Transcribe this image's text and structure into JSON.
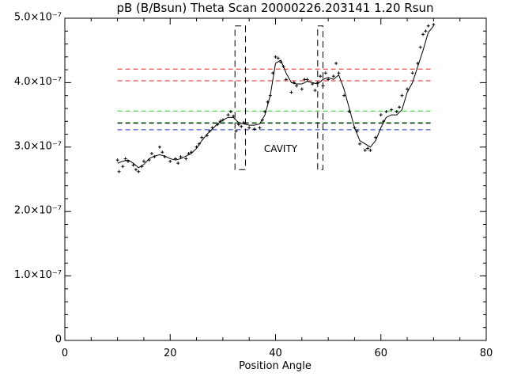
{
  "chart_data": {
    "type": "line",
    "title": "pB (B/Bsun) Theta Scan 20000226.203141 1.20 Rsun",
    "x_label": "Position Angle",
    "xlim": [
      0,
      80
    ],
    "xticks": [
      0,
      20,
      40,
      60,
      80
    ],
    "ylim": [
      0,
      5e-07
    ],
    "yticks": [
      {
        "value": 0,
        "label": "0"
      },
      {
        "value": 1e-07,
        "label": "1.0×10⁻⁷"
      },
      {
        "value": 2e-07,
        "label": "2.0×10⁻⁷"
      },
      {
        "value": 3e-07,
        "label": "3.0×10⁻⁷"
      },
      {
        "value": 4e-07,
        "label": "4.0×10⁻⁷"
      },
      {
        "value": 5e-07,
        "label": "5.0×10⁻⁷"
      }
    ],
    "series": [
      {
        "color": "#000000",
        "x": [
          10,
          11,
          12,
          13,
          14,
          15,
          16,
          17,
          18,
          19,
          20,
          21,
          22,
          23,
          24,
          25,
          26,
          27,
          28,
          29,
          30,
          31,
          32,
          33,
          34,
          35,
          36,
          37,
          38,
          39,
          40,
          41,
          42,
          43,
          44,
          45,
          46,
          47,
          48,
          49,
          50,
          51,
          52,
          53,
          54,
          55,
          56,
          57,
          58,
          59,
          60,
          61,
          62,
          63,
          64,
          65,
          66,
          67,
          68,
          69,
          70
        ],
        "values": [
          2.75e-07,
          2.78e-07,
          2.8e-07,
          2.75e-07,
          2.68e-07,
          2.73e-07,
          2.82e-07,
          2.86e-07,
          2.88e-07,
          2.86e-07,
          2.82e-07,
          2.8e-07,
          2.82e-07,
          2.86e-07,
          2.9e-07,
          2.98e-07,
          3.1e-07,
          3.2e-07,
          3.28e-07,
          3.36e-07,
          3.42e-07,
          3.46e-07,
          3.46e-07,
          3.38e-07,
          3.36e-07,
          3.34e-07,
          3.34e-07,
          3.36e-07,
          3.5e-07,
          3.8e-07,
          4.3e-07,
          4.35e-07,
          4.15e-07,
          4e-07,
          3.98e-07,
          3.98e-07,
          4.02e-07,
          4e-07,
          3.98e-07,
          4.05e-07,
          4.08e-07,
          4.05e-07,
          4.12e-07,
          3.9e-07,
          3.6e-07,
          3.3e-07,
          3.1e-07,
          3.05e-07,
          3e-07,
          3.1e-07,
          3.3e-07,
          3.46e-07,
          3.5e-07,
          3.5e-07,
          3.58e-07,
          3.85e-07,
          4e-07,
          4.25e-07,
          4.5e-07,
          4.78e-07,
          4.88e-07
        ]
      }
    ],
    "points": {
      "color": "#000000",
      "x": [
        10,
        10.3,
        11,
        11.5,
        12,
        13,
        13.5,
        14,
        14.6,
        15,
        16,
        16.5,
        17,
        18,
        18.5,
        19,
        20,
        21,
        21.5,
        22,
        23,
        23.5,
        24,
        25,
        25.5,
        26,
        27,
        27.5,
        28,
        29,
        29.5,
        30,
        31,
        31.5,
        32,
        32.5,
        33,
        33.5,
        34,
        35,
        36,
        37,
        37.5,
        38,
        38.5,
        39,
        39.5,
        40,
        40.5,
        41,
        41.5,
        42,
        43,
        43.5,
        44,
        45,
        45.5,
        46,
        47,
        47.5,
        48,
        48.5,
        49,
        49.5,
        50,
        51,
        51.5,
        52,
        53,
        54,
        55,
        55.5,
        56,
        57,
        57.5,
        58,
        59,
        60,
        60.5,
        61,
        62,
        63,
        63.5,
        64,
        65,
        66,
        67,
        67.5,
        68,
        68.5,
        69,
        70
      ],
      "values": [
        2.8e-07,
        2.62e-07,
        2.7e-07,
        2.82e-07,
        2.78e-07,
        2.72e-07,
        2.65e-07,
        2.62e-07,
        2.7e-07,
        2.78e-07,
        2.8e-07,
        2.9e-07,
        2.85e-07,
        3e-07,
        2.92e-07,
        2.85e-07,
        2.78e-07,
        2.82e-07,
        2.75e-07,
        2.85e-07,
        2.82e-07,
        2.9e-07,
        2.92e-07,
        3e-07,
        3.05e-07,
        3.15e-07,
        3.18e-07,
        3.25e-07,
        3.3e-07,
        3.35e-07,
        3.4e-07,
        3.42e-07,
        3.5e-07,
        3.55e-07,
        3.48e-07,
        3.25e-07,
        3.35e-07,
        3.32e-07,
        3.38e-07,
        3.3e-07,
        3.28e-07,
        3.3e-07,
        3.42e-07,
        3.55e-07,
        3.7e-07,
        3.8e-07,
        4.15e-07,
        4.4e-07,
        4.38e-07,
        4.32e-07,
        4.25e-07,
        4.05e-07,
        3.85e-07,
        4e-07,
        3.95e-07,
        3.9e-07,
        4.05e-07,
        4.05e-07,
        3.98e-07,
        3.88e-07,
        4e-07,
        4.1e-07,
        3.95e-07,
        4.15e-07,
        4.05e-07,
        4.1e-07,
        4.3e-07,
        4.15e-07,
        3.8e-07,
        3.55e-07,
        3.3e-07,
        3.25e-07,
        3.05e-07,
        2.95e-07,
        2.98e-07,
        2.95e-07,
        3.15e-07,
        3.5e-07,
        3.4e-07,
        3.55e-07,
        3.58e-07,
        3.55e-07,
        3.62e-07,
        3.8e-07,
        3.9e-07,
        4.15e-07,
        4.3e-07,
        4.55e-07,
        4.75e-07,
        4.8e-07,
        4.88e-07,
        4.9e-07
      ]
    },
    "hlines": [
      {
        "value": 4.21e-07,
        "color": "#dd2222",
        "x": [
          10,
          70
        ]
      },
      {
        "value": 4.03e-07,
        "color": "#dd2222",
        "x": [
          10,
          70
        ]
      },
      {
        "value": 3.56e-07,
        "color": "#22cc22",
        "x": [
          10,
          70
        ]
      },
      {
        "value": 3.38e-07,
        "color": "#22aa22",
        "x": [
          10,
          70
        ]
      },
      {
        "value": 3.37e-07,
        "color": "#000000",
        "x": [
          10,
          70
        ]
      },
      {
        "value": 3.27e-07,
        "color": "#2233cc",
        "x": [
          10,
          70
        ]
      }
    ],
    "boxes": [
      {
        "x": [
          32.3,
          34.3
        ],
        "y": [
          2.65e-07,
          4.88e-07
        ]
      },
      {
        "x": [
          48,
          49
        ],
        "y": [
          2.65e-07,
          4.88e-07
        ]
      }
    ],
    "annotation": {
      "text": "CAVITY",
      "color": "#dd2222"
    }
  }
}
